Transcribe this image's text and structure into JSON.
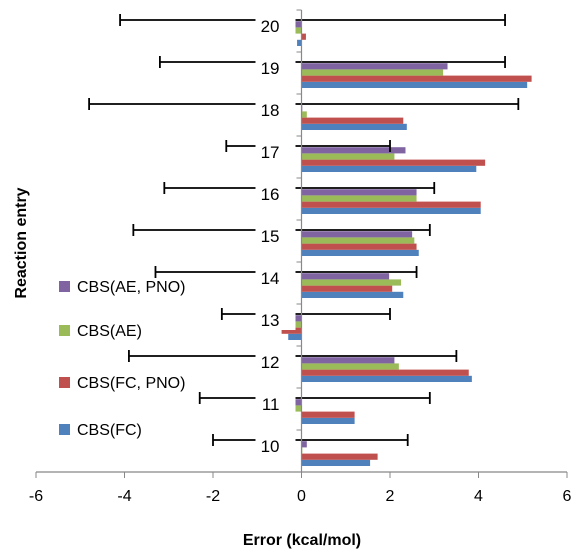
{
  "chart_data": {
    "type": "bar",
    "orientation": "horizontal",
    "title": "",
    "xlabel": "Error (kcal/mol)",
    "ylabel": "Reaction entry",
    "xlim": [
      -6,
      6
    ],
    "xticks": [
      -6,
      -4,
      -2,
      0,
      2,
      4,
      6
    ],
    "grid": false,
    "legend_position": "left",
    "categories": [
      "10",
      "11",
      "12",
      "13",
      "14",
      "15",
      "16",
      "17",
      "18",
      "19",
      "20"
    ],
    "series": [
      {
        "name": "CBS(FC)",
        "color": "#4f81bd",
        "values": [
          1.55,
          1.2,
          3.85,
          -0.3,
          2.3,
          2.65,
          4.05,
          3.95,
          2.38,
          5.1,
          -0.1
        ]
      },
      {
        "name": "CBS(FC, PNO)",
        "color": "#c0504d",
        "values": [
          1.72,
          1.2,
          3.78,
          -0.45,
          2.05,
          2.6,
          4.05,
          4.15,
          2.3,
          5.2,
          0.1
        ]
      },
      {
        "name": "CBS(AE)",
        "color": "#9bbb59",
        "values": [
          0.0,
          -0.35,
          2.2,
          -0.25,
          2.25,
          2.55,
          2.6,
          2.1,
          0.12,
          3.2,
          -0.5
        ]
      },
      {
        "name": "CBS(AE, PNO)",
        "color": "#8064a2",
        "values": [
          0.12,
          -0.4,
          2.1,
          -0.45,
          1.98,
          2.5,
          2.6,
          2.35,
          0.0,
          3.3,
          -0.2
        ]
      }
    ],
    "error_bars": {
      "color": "#000000",
      "ranges": [
        [
          -2.0,
          2.4
        ],
        [
          -2.3,
          2.9
        ],
        [
          -3.9,
          3.5
        ],
        [
          -1.8,
          2.0
        ],
        [
          -3.3,
          2.6
        ],
        [
          -3.8,
          2.9
        ],
        [
          -3.1,
          3.0
        ],
        [
          -1.7,
          2.0
        ],
        [
          -4.8,
          4.9
        ],
        [
          -3.2,
          4.6
        ],
        [
          -4.1,
          4.6
        ]
      ]
    }
  }
}
